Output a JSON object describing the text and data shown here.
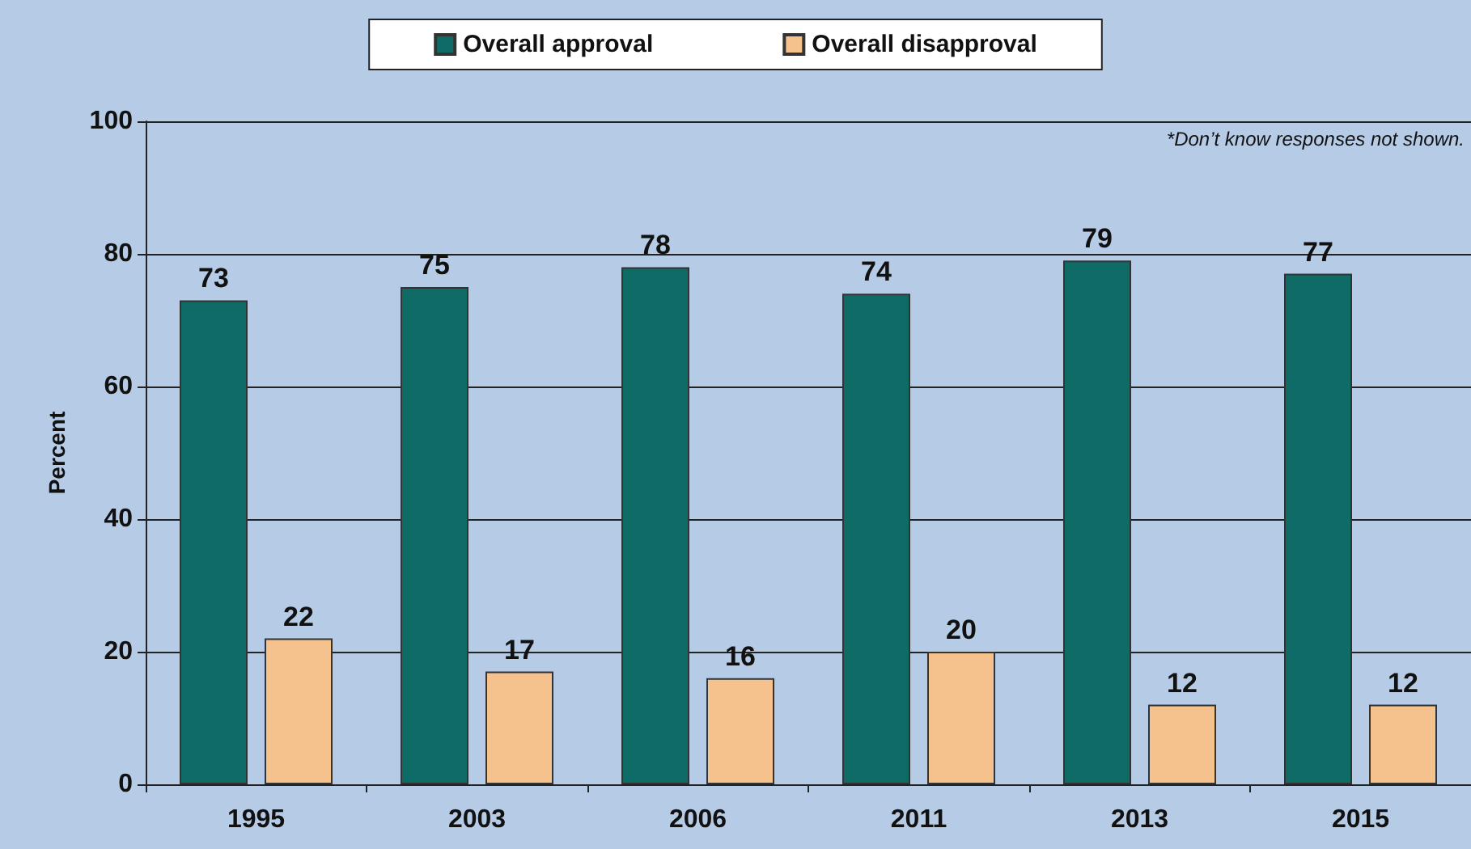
{
  "chart_data": {
    "type": "bar",
    "ylabel": "Percent",
    "categories": [
      "1995",
      "2003",
      "2006",
      "2011",
      "2013",
      "2015"
    ],
    "series": [
      {
        "name": "Overall approval",
        "color": "#0e6b66",
        "values": [
          73,
          75,
          78,
          74,
          79,
          77
        ]
      },
      {
        "name": "Overall disapproval",
        "color": "#f5c18c",
        "values": [
          22,
          17,
          16,
          20,
          12,
          12
        ]
      }
    ],
    "ylim": [
      0,
      100
    ],
    "yticks": [
      0,
      20,
      40,
      60,
      80,
      100
    ],
    "grid": "y",
    "legend": "top",
    "data_labels": true,
    "annotations": [
      "*Don’t know responses not shown."
    ]
  }
}
